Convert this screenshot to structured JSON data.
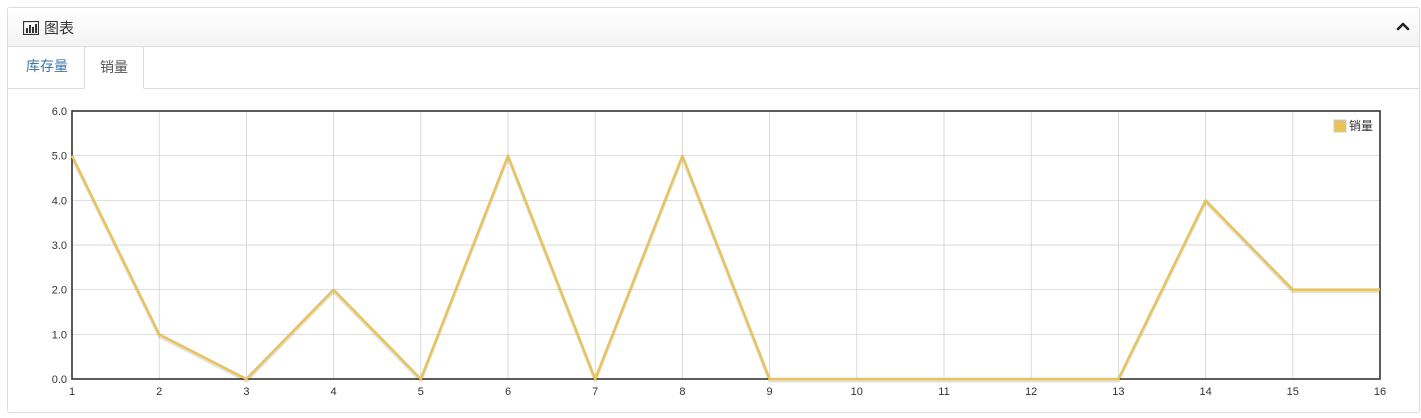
{
  "panel": {
    "title": "图表",
    "title_icon": "bar-chart-icon",
    "collapse_icon": "chevron-up-icon"
  },
  "tabs": [
    {
      "label": "库存量",
      "active": false
    },
    {
      "label": "销量",
      "active": true
    }
  ],
  "colors": {
    "series": "#e8c35a",
    "link": "#337ab7",
    "grid": "#cccccc",
    "axis": "#333333"
  },
  "chart_data": {
    "type": "line",
    "x": [
      "1",
      "2",
      "3",
      "4",
      "5",
      "6",
      "7",
      "8",
      "9",
      "10",
      "11",
      "12",
      "13",
      "14",
      "15",
      "16"
    ],
    "series": [
      {
        "name": "销量",
        "values": [
          5,
          1,
          0,
          2,
          0,
          5,
          0,
          5,
          0,
          0,
          0,
          0,
          0,
          4,
          2,
          2
        ]
      }
    ],
    "ylim": [
      0,
      6
    ],
    "yticks": [
      "0.0",
      "1.0",
      "2.0",
      "3.0",
      "4.0",
      "5.0",
      "6.0"
    ],
    "title": "",
    "xlabel": "",
    "ylabel": "",
    "grid": true,
    "legend_position": "top-right"
  }
}
